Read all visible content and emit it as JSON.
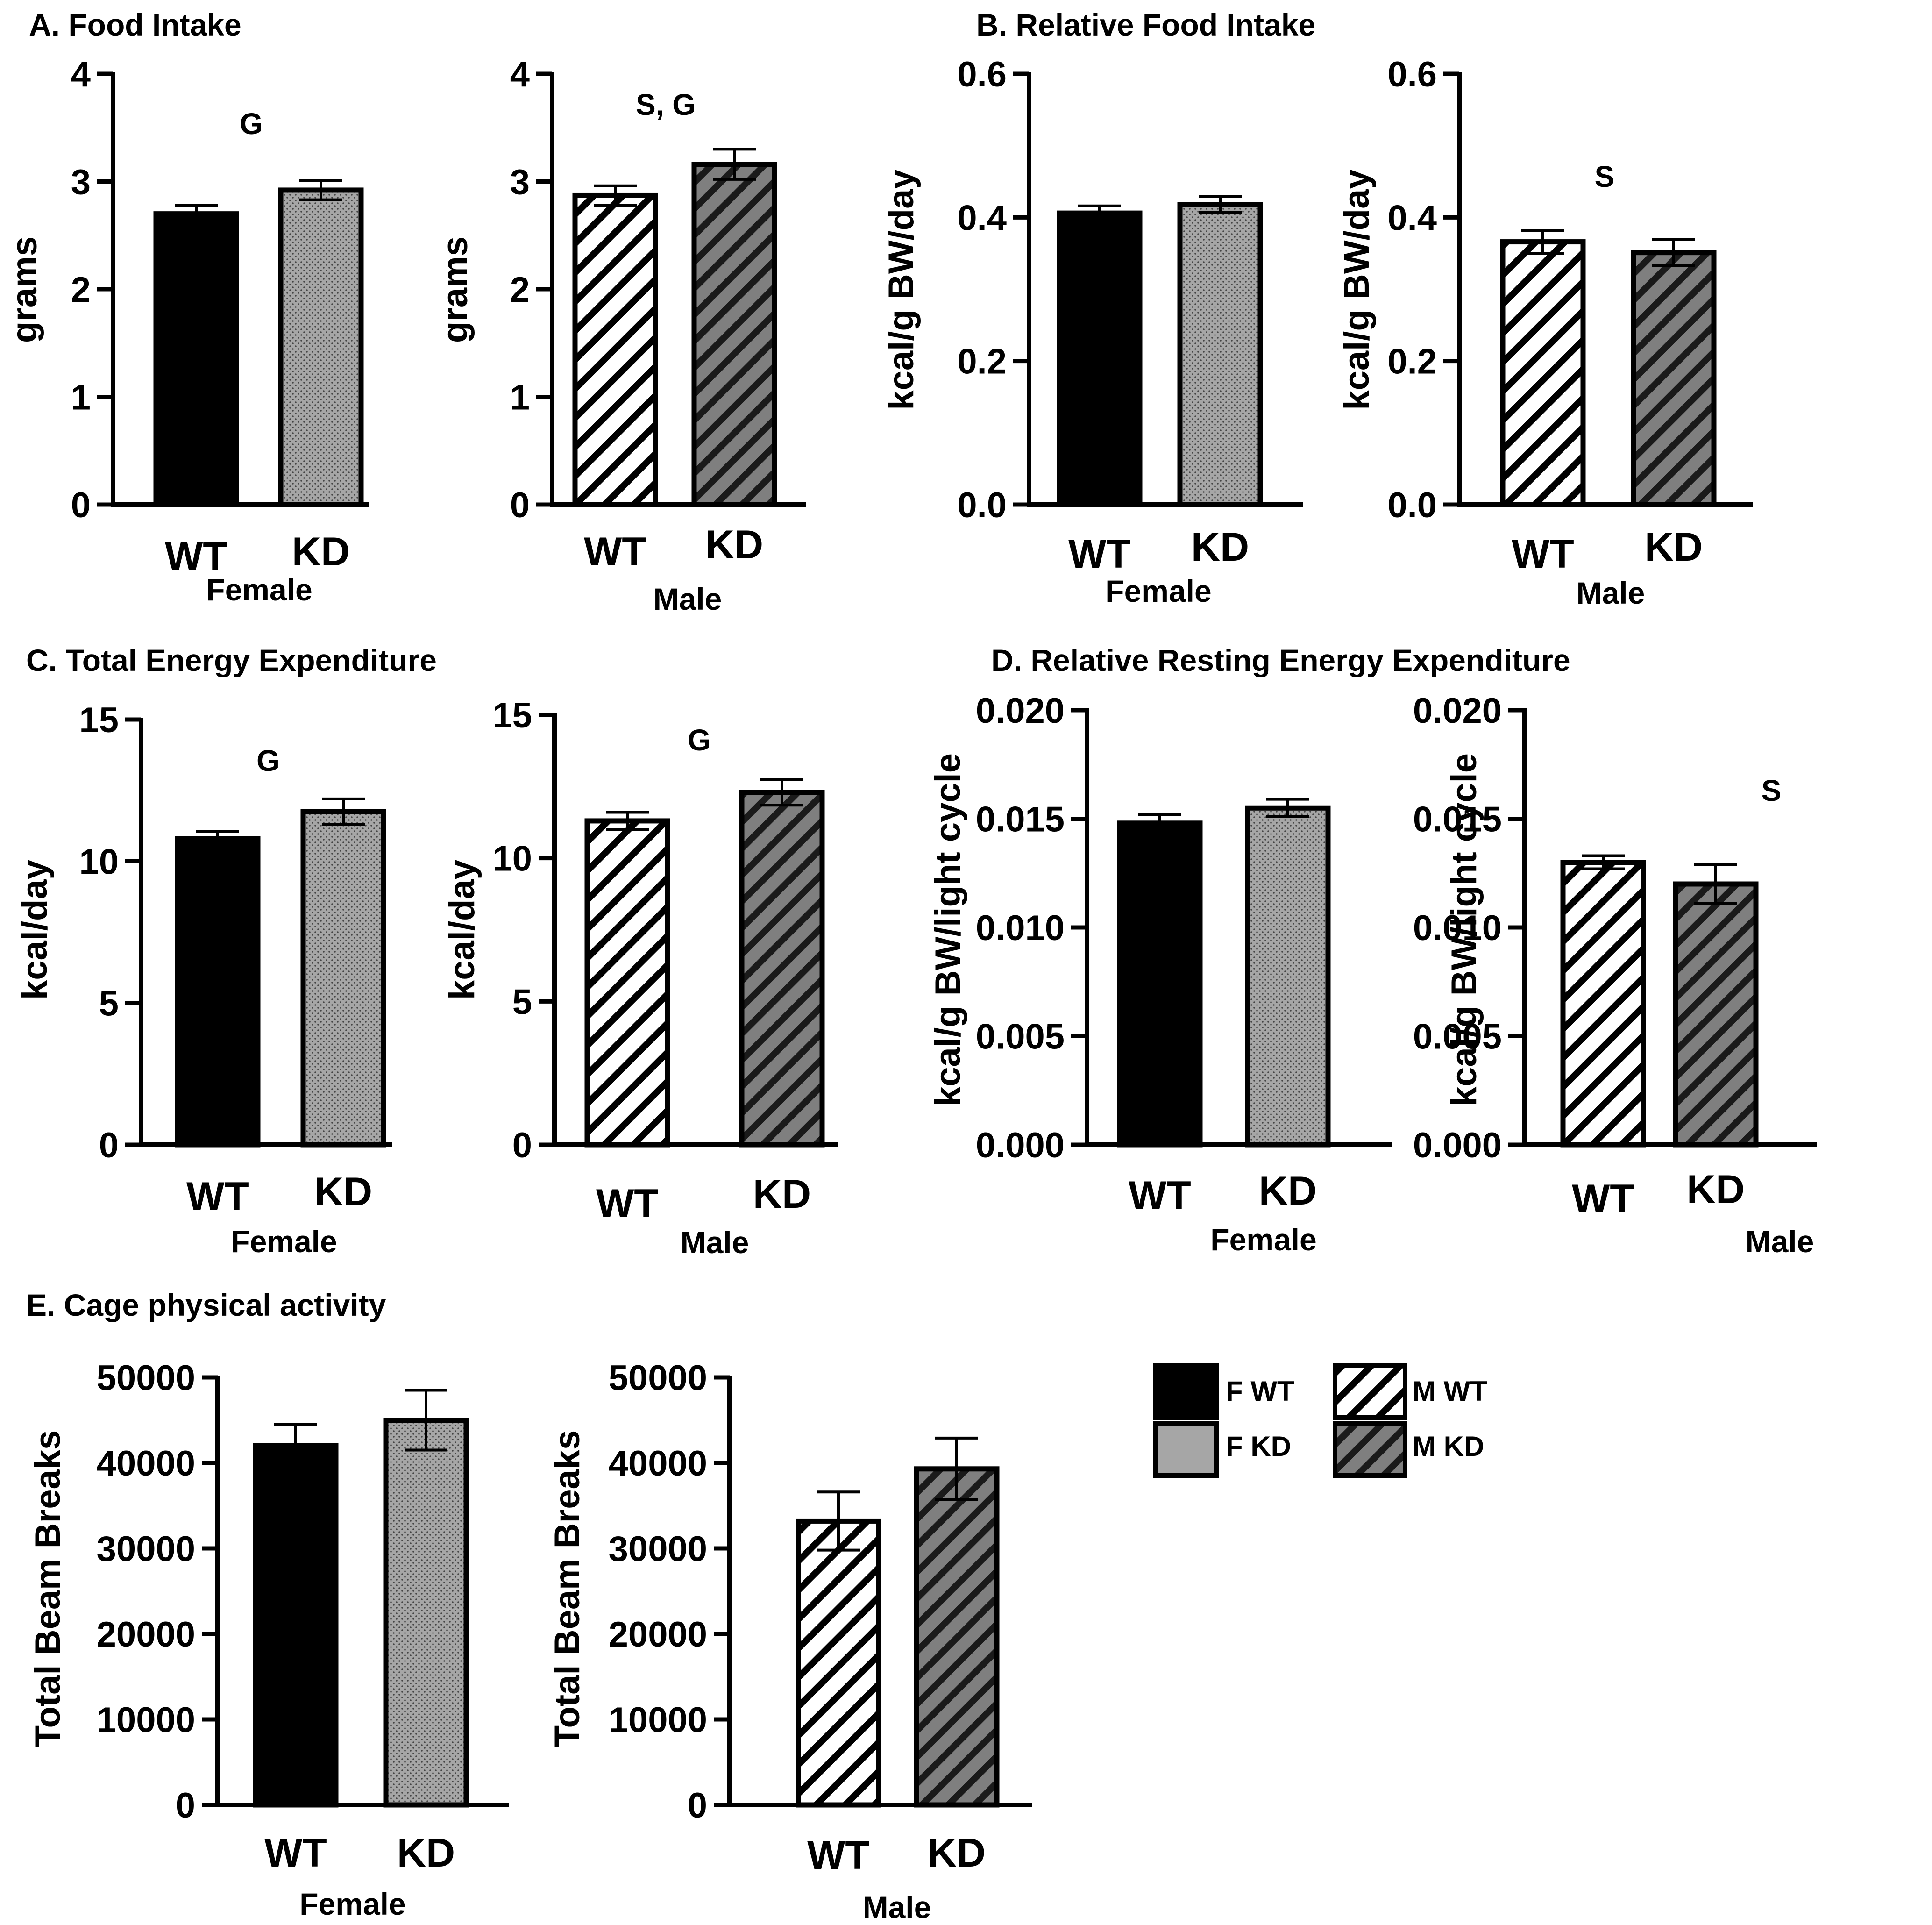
{
  "sections": {
    "A": "A.  Food Intake",
    "B": "B.  Relative Food Intake",
    "C": "C.  Total Energy Expenditure",
    "D": "D. Relative Resting Energy Expenditure",
    "E": "E. Cage physical activity"
  },
  "colors": {
    "f_wt": "#000000",
    "f_kd": "#a6a6a6",
    "m_kd": "#7f7f7f",
    "stroke": "#000000"
  },
  "legend": [
    {
      "label": "F WT",
      "style": "solid-black"
    },
    {
      "label": "M WT",
      "style": "hatch-white"
    },
    {
      "label": "F KD",
      "style": "solid-gray"
    },
    {
      "label": "M KD",
      "style": "hatch-gray"
    }
  ],
  "chart_data": [
    {
      "id": "A-female",
      "type": "bar",
      "section": "A",
      "title": "",
      "group_label": "Female",
      "ylabel": "grams",
      "categories": [
        "WT",
        "KD"
      ],
      "values": [
        2.7,
        2.92
      ],
      "errors": [
        0.08,
        0.09
      ],
      "ylim": [
        0,
        4
      ],
      "yticks": [
        "0",
        "1",
        "2",
        "3",
        "4"
      ],
      "annotation": "G",
      "styles": [
        "solid-black",
        "dots-gray"
      ]
    },
    {
      "id": "A-male",
      "type": "bar",
      "section": "A",
      "title": "",
      "group_label": "Male",
      "ylabel": "grams",
      "categories": [
        "WT",
        "KD"
      ],
      "values": [
        2.87,
        3.16
      ],
      "errors": [
        0.09,
        0.14
      ],
      "ylim": [
        0,
        4
      ],
      "yticks": [
        "0",
        "1",
        "2",
        "3",
        "4"
      ],
      "annotation": "S, G",
      "styles": [
        "hatch-white",
        "hatch-gray"
      ]
    },
    {
      "id": "B-female",
      "type": "bar",
      "section": "B",
      "title": "",
      "group_label": "Female",
      "ylabel": "kcal/g BW/day",
      "categories": [
        "WT",
        "KD"
      ],
      "values": [
        0.406,
        0.418
      ],
      "errors": [
        0.01,
        0.011
      ],
      "ylim": [
        0,
        0.6
      ],
      "yticks": [
        "0.0",
        "0.2",
        "0.4",
        "0.6"
      ],
      "annotation": "",
      "styles": [
        "solid-black",
        "dots-gray"
      ]
    },
    {
      "id": "B-male",
      "type": "bar",
      "section": "B",
      "title": "",
      "group_label": "Male",
      "ylabel": "kcal/g BW/day",
      "categories": [
        "WT",
        "KD"
      ],
      "values": [
        0.366,
        0.351
      ],
      "errors": [
        0.016,
        0.018
      ],
      "ylim": [
        0,
        0.6
      ],
      "yticks": [
        "0.0",
        "0.2",
        "0.4",
        "0.6"
      ],
      "annotation": "S",
      "styles": [
        "hatch-white",
        "hatch-gray"
      ]
    },
    {
      "id": "C-female",
      "type": "bar",
      "section": "C",
      "title": "",
      "group_label": "Female",
      "ylabel": "kcal/day",
      "categories": [
        "WT",
        "KD"
      ],
      "values": [
        10.8,
        11.75
      ],
      "errors": [
        0.25,
        0.45
      ],
      "ylim": [
        0,
        15
      ],
      "yticks": [
        "0",
        "5",
        "10",
        "15"
      ],
      "annotation": "G",
      "styles": [
        "solid-black",
        "dots-gray"
      ]
    },
    {
      "id": "C-male",
      "type": "bar",
      "section": "C",
      "title": "",
      "group_label": "Male",
      "ylabel": "kcal/day",
      "categories": [
        "WT",
        "KD"
      ],
      "values": [
        11.3,
        12.3
      ],
      "errors": [
        0.3,
        0.45
      ],
      "ylim": [
        0,
        15
      ],
      "yticks": [
        "0",
        "5",
        "10",
        "15"
      ],
      "annotation": "G",
      "styles": [
        "hatch-white",
        "hatch-gray"
      ]
    },
    {
      "id": "D-female",
      "type": "bar",
      "section": "D",
      "title": "",
      "group_label": "Female",
      "ylabel": "kcal/g BW/light cycle",
      "categories": [
        "WT",
        "KD"
      ],
      "values": [
        0.0148,
        0.0155
      ],
      "errors": [
        0.0004,
        0.0004
      ],
      "ylim": [
        0,
        0.02
      ],
      "yticks": [
        "0.000",
        "0.005",
        "0.010",
        "0.015",
        "0.020"
      ],
      "annotation": "",
      "styles": [
        "solid-black",
        "dots-gray"
      ]
    },
    {
      "id": "D-male",
      "type": "bar",
      "section": "D",
      "title": "",
      "group_label": "Male",
      "ylabel": "kcal/g BW/light cycle",
      "categories": [
        "WT",
        "KD"
      ],
      "values": [
        0.013,
        0.012
      ],
      "errors": [
        0.0003,
        0.0009
      ],
      "ylim": [
        0,
        0.02
      ],
      "yticks": [
        "0.000",
        "0.005",
        "0.010",
        "0.015",
        "0.020"
      ],
      "annotation": "S",
      "styles": [
        "hatch-white",
        "hatch-gray"
      ]
    },
    {
      "id": "E-female",
      "type": "bar",
      "section": "E",
      "title": "",
      "group_label": "Female",
      "ylabel": "Total Beam Breaks",
      "categories": [
        "WT",
        "KD"
      ],
      "values": [
        42000,
        45000
      ],
      "errors": [
        2500,
        3500
      ],
      "ylim": [
        0,
        50000
      ],
      "yticks": [
        "0",
        "10000",
        "20000",
        "30000",
        "40000",
        "50000"
      ],
      "annotation": "",
      "styles": [
        "solid-black",
        "dots-gray"
      ]
    },
    {
      "id": "E-male",
      "type": "bar",
      "section": "E",
      "title": "",
      "group_label": "Male",
      "ylabel": "Total Beam Breaks",
      "categories": [
        "WT",
        "KD"
      ],
      "values": [
        33200,
        39300
      ],
      "errors": [
        3400,
        3600
      ],
      "ylim": [
        0,
        50000
      ],
      "yticks": [
        "0",
        "10000",
        "20000",
        "30000",
        "40000",
        "50000"
      ],
      "annotation": "",
      "styles": [
        "hatch-white",
        "hatch-gray"
      ]
    }
  ]
}
